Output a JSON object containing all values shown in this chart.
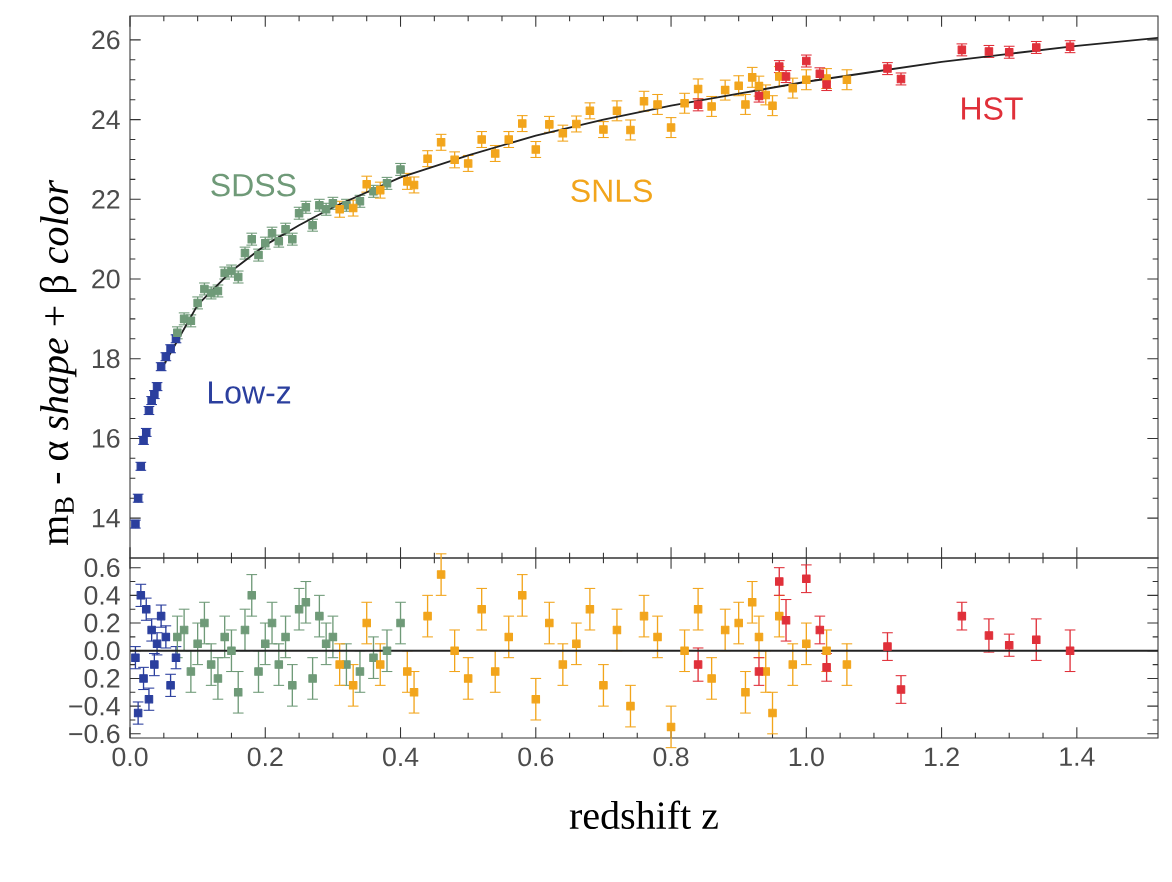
{
  "chart_data": [
    {
      "type": "scatter",
      "ylabel": "m$_{B}$ - α *shape* + β *color*",
      "xlim": [
        0,
        1.52
      ],
      "ylim": [
        13,
        26.6
      ],
      "xticks": [
        0,
        0.2,
        0.4,
        0.6,
        0.8,
        1,
        1.2,
        1.4
      ],
      "yticks": [
        14,
        16,
        18,
        20,
        22,
        24,
        26
      ],
      "tick_labels": "y",
      "marker": "square",
      "series": [
        {
          "name": "Low-z",
          "color": "#2b3f9e",
          "x": [
            0.008,
            0.012,
            0.016,
            0.02,
            0.024,
            0.028,
            0.032,
            0.036,
            0.04,
            0.046,
            0.053,
            0.06,
            0.068
          ],
          "values": [
            13.85,
            14.5,
            15.3,
            15.95,
            16.15,
            16.7,
            16.95,
            17.1,
            17.3,
            17.8,
            18.05,
            18.25,
            18.5
          ],
          "errors": [
            0.1,
            0.1,
            0.1,
            0.1,
            0.1,
            0.1,
            0.1,
            0.1,
            0.1,
            0.1,
            0.1,
            0.1,
            0.1
          ]
        },
        {
          "name": "SDSS",
          "color": "#6f9a78",
          "x": [
            0.07,
            0.08,
            0.09,
            0.1,
            0.11,
            0.12,
            0.13,
            0.14,
            0.15,
            0.16,
            0.17,
            0.18,
            0.19,
            0.2,
            0.21,
            0.22,
            0.23,
            0.24,
            0.25,
            0.26,
            0.27,
            0.28,
            0.29,
            0.3,
            0.32,
            0.34,
            0.36,
            0.38,
            0.4
          ],
          "values": [
            18.65,
            19.0,
            18.95,
            19.4,
            19.75,
            19.65,
            19.7,
            20.15,
            20.2,
            20.05,
            20.65,
            21.0,
            20.6,
            20.9,
            21.15,
            20.95,
            21.25,
            21.0,
            21.65,
            21.8,
            21.35,
            21.85,
            21.75,
            21.9,
            21.85,
            21.95,
            22.2,
            22.4,
            22.75
          ],
          "errors": [
            0.15,
            0.15,
            0.15,
            0.15,
            0.15,
            0.15,
            0.15,
            0.15,
            0.15,
            0.15,
            0.15,
            0.15,
            0.15,
            0.15,
            0.15,
            0.15,
            0.15,
            0.15,
            0.15,
            0.15,
            0.15,
            0.15,
            0.15,
            0.15,
            0.15,
            0.15,
            0.15,
            0.15,
            0.15
          ]
        },
        {
          "name": "SNLS",
          "color": "#f2a51c",
          "x": [
            0.31,
            0.33,
            0.35,
            0.37,
            0.41,
            0.42,
            0.44,
            0.46,
            0.48,
            0.5,
            0.52,
            0.54,
            0.56,
            0.58,
            0.6,
            0.62,
            0.64,
            0.66,
            0.68,
            0.7,
            0.72,
            0.74,
            0.76,
            0.78,
            0.8,
            0.82,
            0.84,
            0.86,
            0.88,
            0.9,
            0.91,
            0.92,
            0.93,
            0.94,
            0.95,
            0.96,
            0.98,
            1.0,
            1.03,
            1.06
          ],
          "values": [
            21.75,
            21.78,
            22.38,
            22.23,
            22.45,
            22.36,
            23.02,
            23.43,
            22.99,
            22.9,
            23.5,
            23.15,
            23.5,
            23.9,
            23.25,
            23.88,
            23.66,
            23.89,
            24.22,
            23.75,
            24.22,
            23.74,
            24.46,
            24.38,
            23.8,
            24.41,
            24.77,
            24.33,
            24.74,
            24.85,
            24.38,
            25.06,
            24.84,
            24.62,
            24.35,
            25.08,
            24.79,
            25.0,
            25.03,
            25.0
          ],
          "errors": [
            0.2,
            0.2,
            0.2,
            0.2,
            0.2,
            0.2,
            0.2,
            0.2,
            0.2,
            0.2,
            0.2,
            0.2,
            0.2,
            0.2,
            0.2,
            0.2,
            0.2,
            0.2,
            0.2,
            0.2,
            0.25,
            0.25,
            0.25,
            0.25,
            0.25,
            0.25,
            0.25,
            0.25,
            0.25,
            0.25,
            0.25,
            0.25,
            0.25,
            0.25,
            0.25,
            0.25,
            0.25,
            0.25,
            0.25,
            0.25
          ]
        },
        {
          "name": "HST",
          "color": "#e0303a",
          "x": [
            0.84,
            0.93,
            0.96,
            0.97,
            1.0,
            1.02,
            1.03,
            1.12,
            1.14,
            1.23,
            1.27,
            1.3,
            1.34,
            1.39
          ],
          "values": [
            24.37,
            24.59,
            25.33,
            25.08,
            25.47,
            25.15,
            24.88,
            25.28,
            25.02,
            25.75,
            25.71,
            25.69,
            25.81,
            25.83
          ],
          "errors": [
            0.15,
            0.15,
            0.15,
            0.15,
            0.15,
            0.15,
            0.15,
            0.15,
            0.15,
            0.15,
            0.15,
            0.15,
            0.15,
            0.15
          ]
        },
        {
          "type": "line",
          "color": "#222222",
          "marker": "none",
          "x": [
            0.05,
            0.1,
            0.15,
            0.2,
            0.25,
            0.3,
            0.4,
            0.5,
            0.6,
            0.7,
            0.8,
            0.9,
            1.0,
            1.1,
            1.2,
            1.3,
            1.4,
            1.52
          ],
          "values": [
            17.85,
            19.35,
            20.2,
            20.85,
            21.35,
            21.8,
            22.55,
            23.1,
            23.6,
            24.0,
            24.35,
            24.65,
            24.95,
            25.2,
            25.45,
            25.65,
            25.85,
            26.05
          ]
        }
      ]
    },
    {
      "type": "scatter",
      "xlabel": "redshift z",
      "xlim": [
        0,
        1.52
      ],
      "ylim": [
        -0.63,
        0.67
      ],
      "xticks": [
        {
          "value": 0,
          "label": "0.0"
        },
        0.2,
        0.4,
        0.6,
        0.8,
        {
          "value": 1,
          "label": "1.0"
        },
        1.2,
        1.4
      ],
      "yticks": [
        0.6,
        0.4,
        0.2,
        {
          "value": 0,
          "label": "0.0"
        },
        {
          "value": -0.2,
          "label": "0.2"
        },
        {
          "value": -0.4,
          "label": "−0.4"
        },
        {
          "value": -0.6,
          "label": "−0.6"
        }
      ],
      "marker": "square",
      "ref_lines": [
        {
          "axis": "y",
          "value": 0,
          "color": "#222222"
        }
      ],
      "series": [
        {
          "color": "#2b3f9e",
          "x": [
            0.008,
            0.012,
            0.016,
            0.02,
            0.024,
            0.028,
            0.032,
            0.036,
            0.04,
            0.046,
            0.053,
            0.06,
            0.068
          ],
          "values": [
            -0.05,
            -0.45,
            0.4,
            -0.2,
            0.3,
            -0.35,
            0.15,
            -0.1,
            0.05,
            0.25,
            0.1,
            -0.25,
            -0.05
          ],
          "errors": [
            0.08,
            0.08,
            0.08,
            0.08,
            0.08,
            0.08,
            0.08,
            0.08,
            0.08,
            0.08,
            0.08,
            0.08,
            0.08
          ]
        },
        {
          "color": "#6f9a78",
          "x": [
            0.07,
            0.08,
            0.09,
            0.1,
            0.11,
            0.12,
            0.13,
            0.14,
            0.15,
            0.16,
            0.17,
            0.18,
            0.19,
            0.2,
            0.21,
            0.22,
            0.23,
            0.24,
            0.25,
            0.26,
            0.27,
            0.28,
            0.29,
            0.3,
            0.32,
            0.34,
            0.36,
            0.38,
            0.4
          ],
          "values": [
            0.1,
            0.15,
            -0.15,
            0.05,
            0.2,
            -0.1,
            -0.2,
            0.1,
            0.0,
            -0.3,
            0.15,
            0.4,
            -0.15,
            0.05,
            0.2,
            -0.1,
            0.1,
            -0.25,
            0.3,
            0.35,
            -0.2,
            0.25,
            0.05,
            0.1,
            -0.1,
            -0.15,
            -0.05,
            0.0,
            0.2
          ],
          "errors": [
            0.15,
            0.15,
            0.15,
            0.15,
            0.15,
            0.15,
            0.15,
            0.15,
            0.15,
            0.15,
            0.15,
            0.15,
            0.15,
            0.15,
            0.15,
            0.15,
            0.15,
            0.15,
            0.15,
            0.15,
            0.15,
            0.15,
            0.15,
            0.15,
            0.15,
            0.15,
            0.15,
            0.15,
            0.15
          ]
        },
        {
          "color": "#f2a51c",
          "x": [
            0.31,
            0.33,
            0.35,
            0.37,
            0.41,
            0.42,
            0.44,
            0.46,
            0.48,
            0.5,
            0.52,
            0.54,
            0.56,
            0.58,
            0.6,
            0.62,
            0.64,
            0.66,
            0.68,
            0.7,
            0.72,
            0.74,
            0.76,
            0.78,
            0.8,
            0.82,
            0.84,
            0.86,
            0.88,
            0.9,
            0.91,
            0.92,
            0.93,
            0.94,
            0.95,
            0.96,
            0.98,
            1.0,
            1.03,
            1.06
          ],
          "values": [
            -0.1,
            -0.25,
            0.2,
            -0.1,
            -0.15,
            -0.3,
            0.25,
            0.55,
            0.0,
            -0.2,
            0.3,
            -0.15,
            0.1,
            0.4,
            -0.35,
            0.2,
            -0.1,
            0.05,
            0.3,
            -0.25,
            0.15,
            -0.4,
            0.25,
            0.1,
            -0.55,
            0.0,
            0.3,
            -0.2,
            0.15,
            0.2,
            -0.3,
            0.35,
            0.1,
            -0.15,
            -0.45,
            0.25,
            -0.1,
            0.05,
            0.0,
            -0.1
          ],
          "errors": [
            0.15,
            0.15,
            0.15,
            0.15,
            0.15,
            0.15,
            0.15,
            0.15,
            0.15,
            0.15,
            0.15,
            0.15,
            0.15,
            0.15,
            0.15,
            0.15,
            0.15,
            0.15,
            0.15,
            0.15,
            0.15,
            0.15,
            0.15,
            0.15,
            0.15,
            0.15,
            0.15,
            0.15,
            0.15,
            0.15,
            0.15,
            0.15,
            0.15,
            0.15,
            0.15,
            0.15,
            0.15,
            0.15,
            0.15,
            0.15
          ]
        },
        {
          "color": "#e0303a",
          "x": [
            0.84,
            0.93,
            0.96,
            0.97,
            1.0,
            1.02,
            1.03,
            1.12,
            1.14,
            1.23,
            1.27,
            1.3,
            1.34,
            1.39
          ],
          "values": [
            -0.1,
            -0.15,
            0.5,
            0.22,
            0.52,
            0.15,
            -0.12,
            0.03,
            -0.28,
            0.25,
            0.11,
            0.04,
            0.08,
            0.0
          ],
          "errors": [
            0.12,
            0.1,
            0.1,
            0.15,
            0.1,
            0.1,
            0.1,
            0.1,
            0.1,
            0.1,
            0.12,
            0.08,
            0.15,
            0.15
          ]
        }
      ]
    }
  ]
}
